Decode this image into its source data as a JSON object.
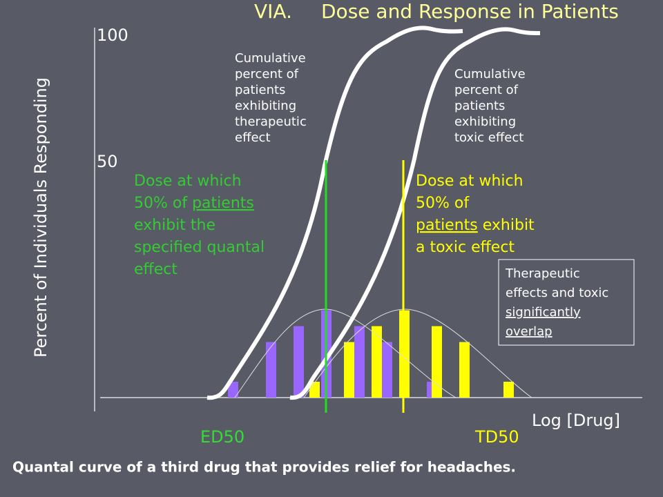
{
  "title_prefix": "VIA.",
  "title": "Dose and Response in Patients",
  "y_axis_label": "Percent of Individuals Responding",
  "y_labels": [
    "100",
    "50"
  ],
  "x_axis_label": "Log [Drug]",
  "ed50": "ED50",
  "td50": "TD50",
  "therapeutic_note": [
    "Cumulative",
    "percent of",
    "patients",
    "exhibiting",
    "therapeutic",
    "effect"
  ],
  "toxic_note": [
    "Cumulative",
    "percent of",
    "patients",
    "exhibiting",
    "toxic effect"
  ],
  "ed50_note": [
    [
      {
        "text": "Dose at which"
      }
    ],
    [
      {
        "text": "50% of "
      },
      {
        "text": "patients",
        "underline": true
      }
    ],
    [
      {
        "text": "exhibit the"
      }
    ],
    [
      {
        "text": "specified quantal"
      }
    ],
    [
      {
        "text": "effect"
      }
    ]
  ],
  "td50_note": [
    [
      {
        "text": "Dose at which"
      }
    ],
    [
      {
        "text": "50% of"
      }
    ],
    [
      {
        "text": "patients",
        "underline": true
      },
      {
        "text": " exhibit"
      }
    ],
    [
      {
        "text": "a toxic effect"
      }
    ]
  ],
  "overlap_note": [
    [
      {
        "text": "Therapeutic"
      }
    ],
    [
      {
        "text": "effects and toxic"
      }
    ],
    [
      {
        "text": "significantly",
        "underline": true
      }
    ],
    [
      {
        "text": "overlap",
        "underline": true
      }
    ]
  ],
  "therapeutic_counts": [
    1,
    3.5,
    4.5,
    5.5,
    4.5,
    3.5,
    1
  ],
  "toxic_counts": [
    1,
    3.5,
    4.5,
    5.5,
    4.5,
    3.5,
    1
  ],
  "caption": "Quantal curve of a third drug that provides relief for headaches."
}
